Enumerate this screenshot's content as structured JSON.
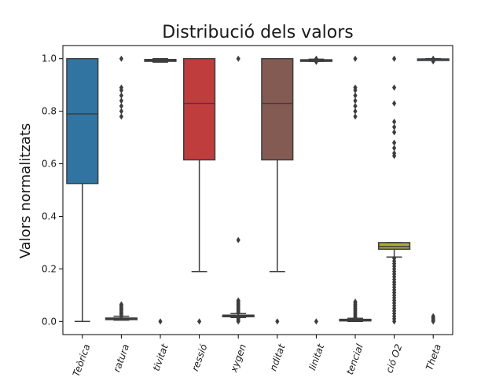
{
  "chart_data": {
    "type": "box",
    "title": "Distribució dels valors",
    "xlabel": "",
    "ylabel": "Valors normalitzats",
    "ylim": [
      -0.05,
      1.05
    ],
    "yticks": [
      "0.0",
      "0.2",
      "0.4",
      "0.6",
      "0.8",
      "1.0"
    ],
    "ytick_values": [
      0.0,
      0.2,
      0.4,
      0.6,
      0.8,
      1.0
    ],
    "grid": false,
    "categories": [
      "Teòrica",
      "ratura",
      "tivitat",
      "ressió",
      "xygen",
      "nditat",
      "linitat",
      "tencial",
      "ció O2",
      "Theta"
    ],
    "boxes": [
      {
        "min": 0.0,
        "q1": 0.525,
        "median": 0.79,
        "q3": 1.0,
        "max": 1.0,
        "color": "#3274a1",
        "outliers": []
      },
      {
        "min": 0.005,
        "q1": 0.007,
        "median": 0.01,
        "q3": 0.013,
        "max": 0.02,
        "color": "#e1812c",
        "outliers": [
          0.02,
          0.025,
          0.03,
          0.035,
          0.04,
          0.045,
          0.05,
          0.055,
          0.06,
          0.065,
          0.78,
          0.8,
          0.82,
          0.84,
          0.86,
          0.88,
          0.89,
          1.0
        ]
      },
      {
        "min": 0.987,
        "q1": 0.99,
        "median": 0.993,
        "q3": 0.997,
        "max": 1.0,
        "color": "#3a923a",
        "outliers": [
          0.0
        ]
      },
      {
        "min": 0.19,
        "q1": 0.615,
        "median": 0.83,
        "q3": 1.0,
        "max": 1.0,
        "color": "#c03d3e",
        "outliers": [
          0.0
        ]
      },
      {
        "min": 0.015,
        "q1": 0.018,
        "median": 0.021,
        "q3": 0.024,
        "max": 0.03,
        "color": "#9372b2",
        "outliers": [
          0.0,
          0.005,
          0.01,
          0.035,
          0.04,
          0.045,
          0.05,
          0.055,
          0.06,
          0.065,
          0.07,
          0.075,
          0.08,
          0.31,
          1.0
        ]
      },
      {
        "min": 0.19,
        "q1": 0.615,
        "median": 0.83,
        "q3": 1.0,
        "max": 1.0,
        "color": "#845b53",
        "outliers": [
          0.0
        ]
      },
      {
        "min": 0.99,
        "q1": 0.992,
        "median": 0.994,
        "q3": 0.996,
        "max": 0.998,
        "color": "#d684bd",
        "outliers": [
          0.0,
          0.988,
          1.0
        ]
      },
      {
        "min": 0.0,
        "q1": 0.003,
        "median": 0.005,
        "q3": 0.008,
        "max": 0.012,
        "color": "#7f7f7f",
        "outliers": [
          0.015,
          0.02,
          0.025,
          0.03,
          0.035,
          0.04,
          0.045,
          0.05,
          0.055,
          0.06,
          0.065,
          0.07,
          0.075,
          0.78,
          0.8,
          0.82,
          0.84,
          0.86,
          0.88,
          0.89,
          1.0
        ]
      },
      {
        "min": 0.245,
        "q1": 0.275,
        "median": 0.285,
        "q3": 0.3,
        "max": 0.3,
        "color": "#a9aa35",
        "outliers": [
          0.0,
          0.01,
          0.02,
          0.03,
          0.04,
          0.05,
          0.06,
          0.07,
          0.08,
          0.09,
          0.1,
          0.11,
          0.12,
          0.13,
          0.14,
          0.15,
          0.16,
          0.17,
          0.18,
          0.19,
          0.2,
          0.21,
          0.22,
          0.23,
          0.24,
          0.63,
          0.64,
          0.66,
          0.68,
          0.72,
          0.74,
          0.76,
          0.83,
          0.89,
          1.0
        ]
      },
      {
        "min": 0.995,
        "q1": 0.997,
        "median": 0.998,
        "q3": 0.999,
        "max": 1.0,
        "color": "#2eaab8",
        "outliers": [
          0.0,
          0.005,
          0.01,
          0.015,
          0.02,
          0.99,
          1.0
        ]
      }
    ]
  }
}
